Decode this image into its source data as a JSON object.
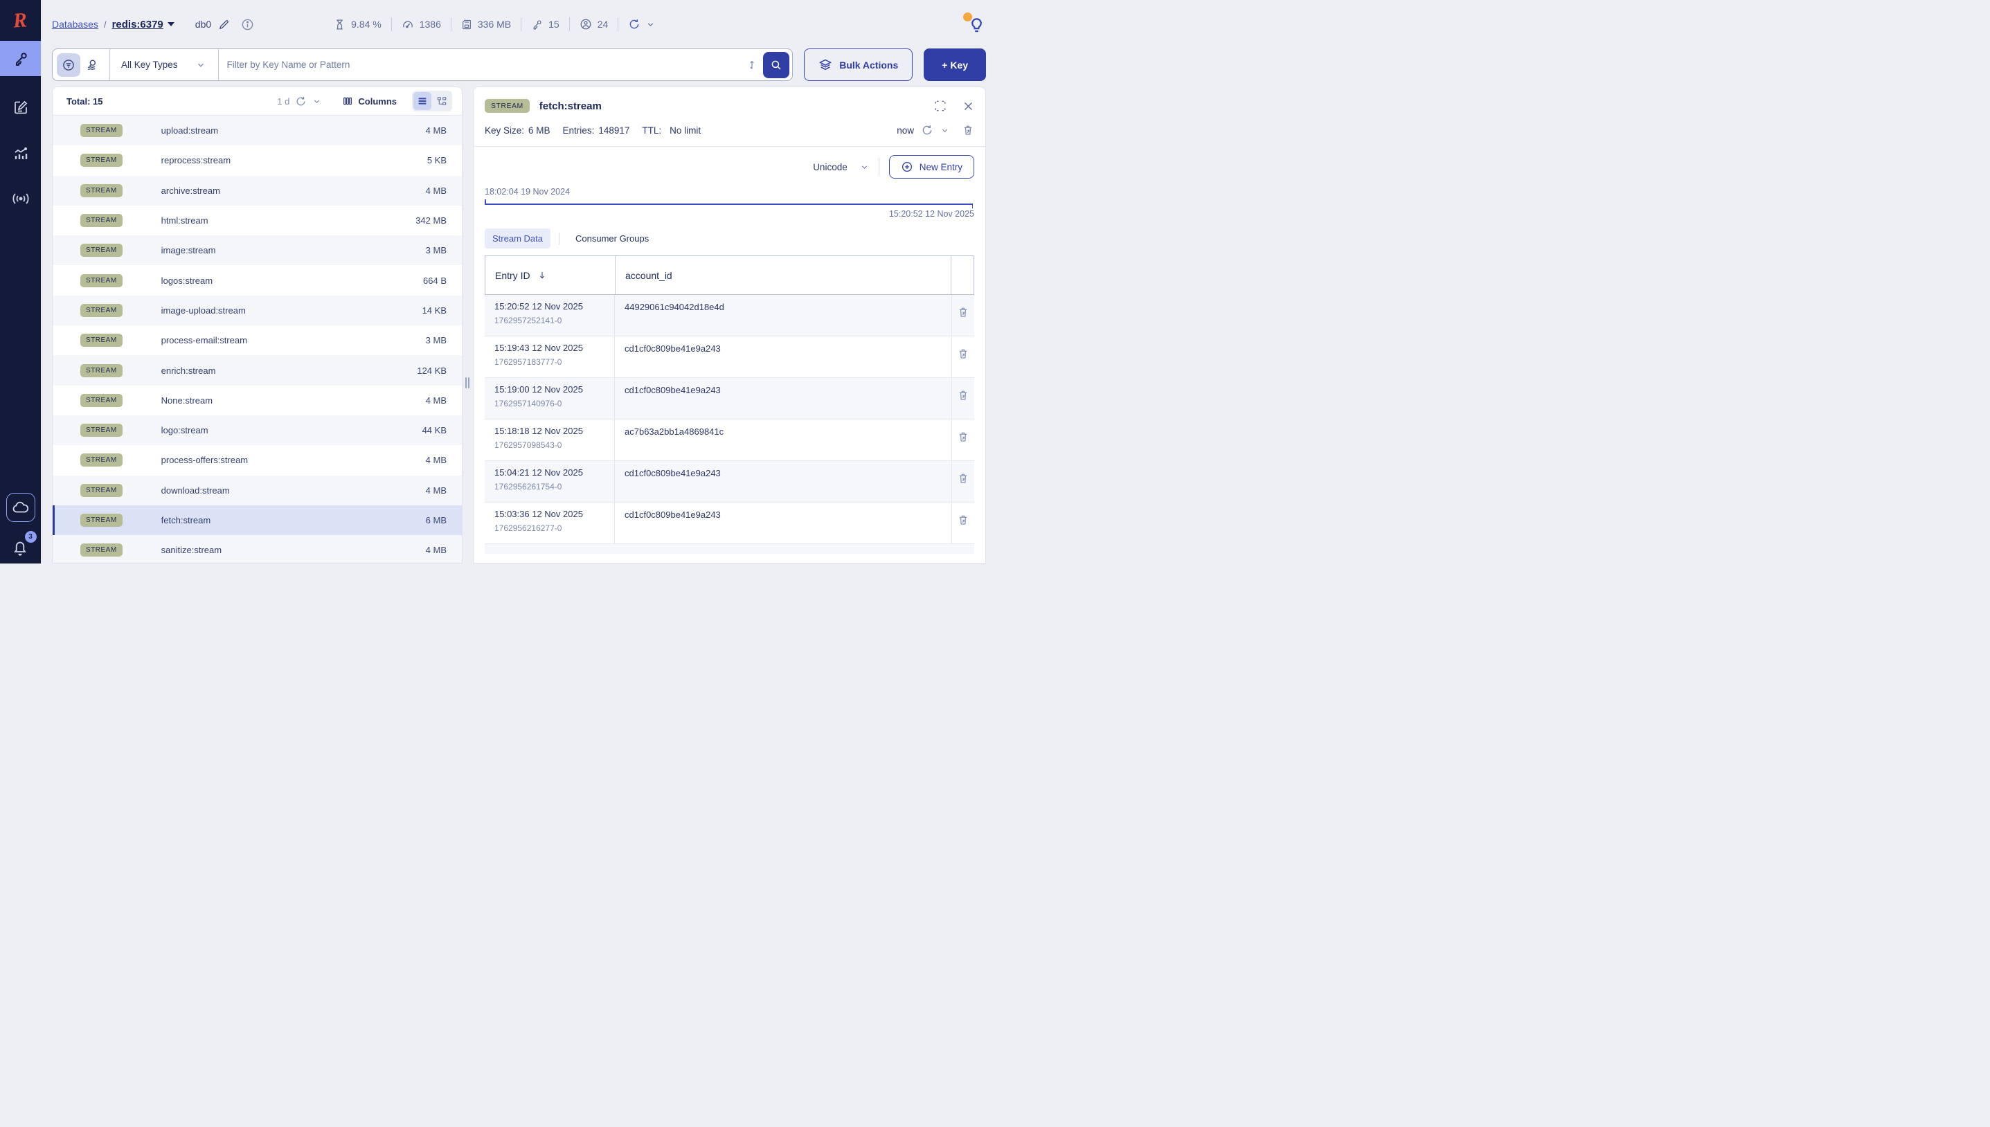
{
  "colors": {
    "accent": "#303da5",
    "sidebar": "#141a39",
    "sidebar_selected": "#8fa0f4",
    "stream_badge": "#b6bd96",
    "selected_row": "#dbe2f6",
    "timeline": "#3d4cc0"
  },
  "sidebar": {
    "logo_letter": "R",
    "notifications_badge": "3"
  },
  "header": {
    "breadcrumb": {
      "root": "Databases",
      "separator": "/",
      "database": "redis:6379",
      "db_index": "db0"
    },
    "stats": {
      "cpu": "9.84 %",
      "commands": "1386",
      "memory": "336 MB",
      "keys": "15",
      "clients": "24"
    }
  },
  "toolbar": {
    "key_type_filter": "All Key Types",
    "search_placeholder": "Filter by Key Name or Pattern",
    "bulk_actions_label": "Bulk Actions",
    "add_key_label": "+ Key"
  },
  "key_list": {
    "total_label": "Total: 15",
    "refresh_interval": "1 d",
    "columns_label": "Columns",
    "rows": [
      {
        "type": "STREAM",
        "name": "upload:stream",
        "size": "4 MB",
        "selected": false
      },
      {
        "type": "STREAM",
        "name": "reprocess:stream",
        "size": "5 KB",
        "selected": false
      },
      {
        "type": "STREAM",
        "name": "archive:stream",
        "size": "4 MB",
        "selected": false
      },
      {
        "type": "STREAM",
        "name": "html:stream",
        "size": "342 MB",
        "selected": false
      },
      {
        "type": "STREAM",
        "name": "image:stream",
        "size": "3 MB",
        "selected": false
      },
      {
        "type": "STREAM",
        "name": "logos:stream",
        "size": "664 B",
        "selected": false
      },
      {
        "type": "STREAM",
        "name": "image-upload:stream",
        "size": "14 KB",
        "selected": false
      },
      {
        "type": "STREAM",
        "name": "process-email:stream",
        "size": "3 MB",
        "selected": false
      },
      {
        "type": "STREAM",
        "name": "enrich:stream",
        "size": "124 KB",
        "selected": false
      },
      {
        "type": "STREAM",
        "name": "None:stream",
        "size": "4 MB",
        "selected": false
      },
      {
        "type": "STREAM",
        "name": "logo:stream",
        "size": "44 KB",
        "selected": false
      },
      {
        "type": "STREAM",
        "name": "process-offers:stream",
        "size": "4 MB",
        "selected": false
      },
      {
        "type": "STREAM",
        "name": "download:stream",
        "size": "4 MB",
        "selected": false
      },
      {
        "type": "STREAM",
        "name": "fetch:stream",
        "size": "6 MB",
        "selected": true
      },
      {
        "type": "STREAM",
        "name": "sanitize:stream",
        "size": "4 MB",
        "selected": false
      }
    ]
  },
  "key_details": {
    "type_badge": "STREAM",
    "name": "fetch:stream",
    "meta": {
      "key_size_label": "Key Size:",
      "key_size": "6 MB",
      "entries_label": "Entries:",
      "entries": "148917",
      "ttl_label": "TTL:",
      "ttl": "No limit",
      "refreshed": "now"
    },
    "format": "Unicode",
    "new_entry_label": "New Entry",
    "timeline": {
      "start": "18:02:04 19 Nov 2024",
      "end": "15:20:52 12 Nov 2025"
    },
    "tabs": {
      "stream_data": "Stream Data",
      "consumer_groups": "Consumer Groups"
    },
    "table": {
      "columns": {
        "entry_id": "Entry ID",
        "field1": "account_id"
      },
      "rows": [
        {
          "time": "15:20:52 12 Nov 2025",
          "id": "1762957252141-0",
          "account_id": "44929061c94042d18e4d"
        },
        {
          "time": "15:19:43 12 Nov 2025",
          "id": "1762957183777-0",
          "account_id": "cd1cf0c809be41e9a243"
        },
        {
          "time": "15:19:00 12 Nov 2025",
          "id": "1762957140976-0",
          "account_id": "cd1cf0c809be41e9a243"
        },
        {
          "time": "15:18:18 12 Nov 2025",
          "id": "1762957098543-0",
          "account_id": "ac7b63a2bb1a4869841c"
        },
        {
          "time": "15:04:21 12 Nov 2025",
          "id": "1762956261754-0",
          "account_id": "cd1cf0c809be41e9a243"
        },
        {
          "time": "15:03:36 12 Nov 2025",
          "id": "1762956216277-0",
          "account_id": "cd1cf0c809be41e9a243"
        }
      ]
    }
  }
}
